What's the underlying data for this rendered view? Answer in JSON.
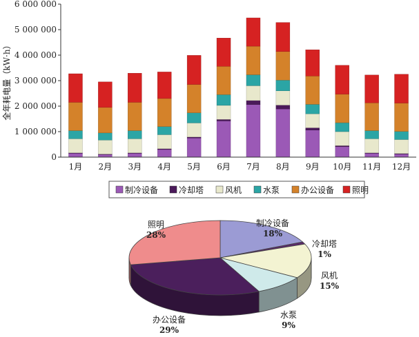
{
  "chart_data": [
    {
      "type": "bar",
      "stacked": true,
      "ylabel": "全年耗电量（kW·h）",
      "ylim": [
        0,
        6000000
      ],
      "yticks": [
        "0",
        "1 000 000",
        "2 000 000",
        "3 000 000",
        "4 000 000",
        "5 000 000",
        "6 000 000"
      ],
      "ytick_values": [
        0,
        1000000,
        2000000,
        3000000,
        4000000,
        5000000,
        6000000
      ],
      "categories": [
        "1月",
        "2月",
        "3月",
        "4月",
        "5月",
        "6月",
        "7月",
        "8月",
        "9月",
        "10月",
        "11月",
        "12月"
      ],
      "grid": false,
      "legend_position": "bottom",
      "series": [
        {
          "name": "制冷设备",
          "color": "#9b59b6",
          "values": [
            150000,
            100000,
            150000,
            300000,
            750000,
            1420000,
            2060000,
            1890000,
            1060000,
            410000,
            150000,
            120000
          ]
        },
        {
          "name": "冷却塔",
          "color": "#4b1a5a",
          "values": [
            20000,
            20000,
            20000,
            30000,
            40000,
            60000,
            160000,
            150000,
            90000,
            40000,
            20000,
            20000
          ]
        },
        {
          "name": "风机",
          "color": "#e8e8cc",
          "values": [
            550000,
            550000,
            550000,
            550000,
            550000,
            550000,
            580000,
            560000,
            550000,
            550000,
            550000,
            550000
          ]
        },
        {
          "name": "水泵",
          "color": "#2ba5a5",
          "values": [
            320000,
            280000,
            320000,
            320000,
            400000,
            420000,
            430000,
            420000,
            370000,
            350000,
            320000,
            320000
          ]
        },
        {
          "name": "办公设备",
          "color": "#d4822a",
          "values": [
            1110000,
            1000000,
            1110000,
            1100000,
            1110000,
            1110000,
            1120000,
            1120000,
            1110000,
            1120000,
            1090000,
            1110000
          ]
        },
        {
          "name": "照明",
          "color": "#d62222",
          "values": [
            1120000,
            1000000,
            1140000,
            1040000,
            1140000,
            1110000,
            1110000,
            1140000,
            1030000,
            1130000,
            1090000,
            1130000
          ]
        }
      ]
    },
    {
      "type": "pie",
      "style": "3d",
      "slices": [
        {
          "label": "制冷设备",
          "value": 18,
          "pct": "18%",
          "color": "#9b9bd4"
        },
        {
          "label": "冷却塔",
          "value": 1,
          "pct": "1%",
          "color": "#5a2a6a"
        },
        {
          "label": "风机",
          "value": 15,
          "pct": "15%",
          "color": "#f3f3d2"
        },
        {
          "label": "水泵",
          "value": 9,
          "pct": "9%",
          "color": "#cfeaea"
        },
        {
          "label": "办公设备",
          "value": 29,
          "pct": "29%",
          "color": "#4b1f5c"
        },
        {
          "label": "照明",
          "value": 28,
          "pct": "28%",
          "color": "#ef8c8c"
        }
      ]
    }
  ]
}
